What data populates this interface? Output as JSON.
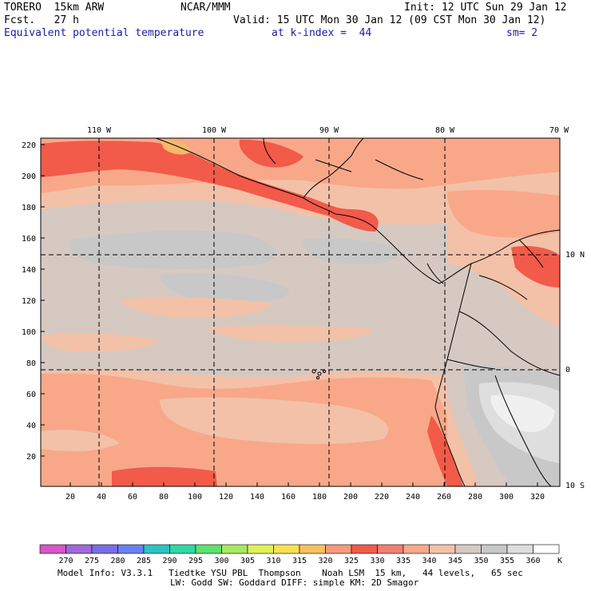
{
  "header": {
    "model": "TORERO  15km ARW",
    "org": "NCAR/MMM",
    "init": "Init: 12 UTC Sun 29 Jan 12",
    "fcst": "Fcst.   27 h",
    "valid": "Valid: 15 UTC Mon 30 Jan 12 (09 CST Mon 30 Jan 12)",
    "field": "Equivalent potential temperature",
    "level": "at k-index =  44",
    "smooth": "sm= 2"
  },
  "map": {
    "top_labels": [
      "110 W",
      "100 W",
      "90 W",
      "80 W",
      "70 W"
    ],
    "right_labels": [
      "10 N",
      "0",
      "10 S"
    ],
    "x_ticks": [
      "20",
      "40",
      "60",
      "80",
      "100",
      "120",
      "140",
      "160",
      "180",
      "200",
      "220",
      "240",
      "260",
      "280",
      "300",
      "320"
    ],
    "y_ticks": [
      "220",
      "200",
      "180",
      "160",
      "140",
      "120",
      "100",
      "80",
      "60",
      "40",
      "20"
    ],
    "colors": {
      "c325": "#f59a7a",
      "c330": "#f25a4a",
      "c335": "#f8a889",
      "c340": "#f3c1a8",
      "c345": "#d6c9c2",
      "c350": "#c8c8c8",
      "c355": "#dedede",
      "c360": "#f0f0f0",
      "c320": "#f6b96c"
    }
  },
  "colorbar": {
    "labels": [
      "270",
      "275",
      "280",
      "285",
      "290",
      "295",
      "300",
      "305",
      "310",
      "315",
      "320",
      "325",
      "330",
      "335",
      "340",
      "345",
      "350",
      "355",
      "360"
    ],
    "unit": "K",
    "colors": [
      "#d655c8",
      "#a068d8",
      "#7a6ee6",
      "#6a80f0",
      "#2ec2c2",
      "#2ed8a0",
      "#60e070",
      "#a8e860",
      "#e0f05a",
      "#f8e050",
      "#f8c060",
      "#f59a7a",
      "#f25a4a",
      "#f08070",
      "#f8a889",
      "#f3c1a8",
      "#d6c9c2",
      "#c8c8c8",
      "#dedede",
      "#ffffff"
    ]
  },
  "footer": {
    "line1": "Model Info: V3.3.1   Tiedtke YSU PBL  Thompson    Noah LSM  15 km,   44 levels,   65 sec",
    "line2": "LW: Godd SW: Goddard DIFF: simple KM: 2D Smagor"
  }
}
